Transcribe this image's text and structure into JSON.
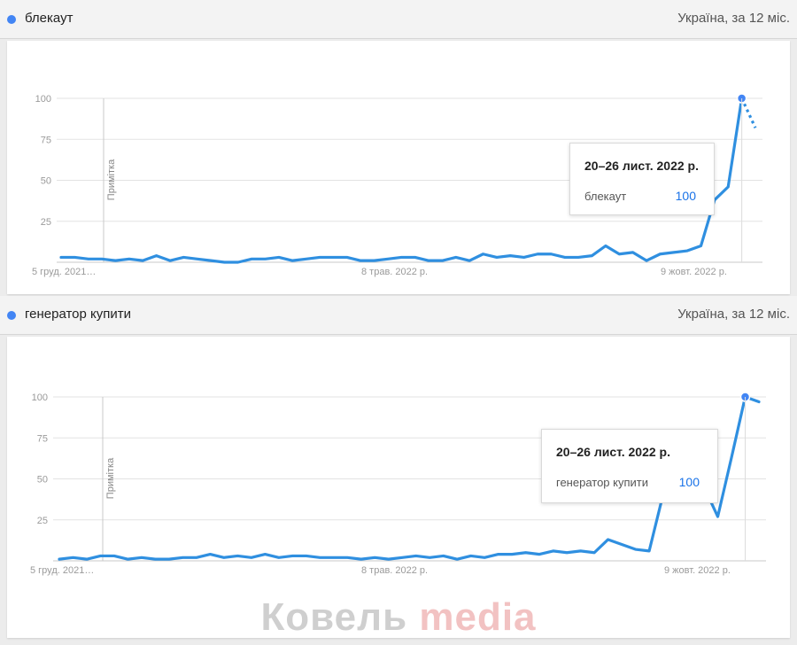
{
  "panels": [
    {
      "term": "блекаут",
      "region": "Україна, за 12 міс.",
      "tooltip": {
        "date": "20–26 лист. 2022 р.",
        "term": "блекаут",
        "value": "100"
      },
      "note": "Примітка",
      "chart_data": {
        "type": "line",
        "ylim": [
          0,
          100
        ],
        "yticks": [
          "100",
          "75",
          "50",
          "25"
        ],
        "xticks": [
          "5 груд. 2021…",
          "8 трав. 2022 р.",
          "9 жовт. 2022 р."
        ],
        "series": [
          {
            "name": "блекаут",
            "values": [
              3,
              3,
              2,
              2,
              1,
              2,
              1,
              4,
              1,
              3,
              2,
              1,
              0,
              0,
              2,
              2,
              3,
              1,
              2,
              3,
              3,
              3,
              1,
              1,
              2,
              3,
              3,
              1,
              1,
              3,
              1,
              5,
              3,
              4,
              3,
              5,
              5,
              3,
              3,
              4,
              10,
              5,
              6,
              1,
              5,
              6,
              7,
              10,
              38,
              46,
              100,
              82
            ],
            "partial_last": true
          }
        ]
      },
      "colors": {
        "line": "#2f8fe0",
        "dot": "#4285f4"
      }
    },
    {
      "term": "генератор купити",
      "region": "Україна, за 12 міс.",
      "tooltip": {
        "date": "20–26 лист. 2022 р.",
        "term": "генератор купити",
        "value": "100"
      },
      "note": "Примітка",
      "chart_data": {
        "type": "line",
        "ylim": [
          0,
          100
        ],
        "yticks": [
          "100",
          "75",
          "50",
          "25"
        ],
        "xticks": [
          "5 груд. 2021…",
          "8 трав. 2022 р.",
          "9 жовт. 2022 р."
        ],
        "series": [
          {
            "name": "генератор купити",
            "values": [
              1,
              2,
              1,
              3,
              3,
              1,
              2,
              1,
              1,
              2,
              2,
              4,
              2,
              3,
              2,
              4,
              2,
              3,
              3,
              2,
              2,
              2,
              1,
              2,
              1,
              2,
              3,
              2,
              3,
              1,
              3,
              2,
              4,
              4,
              5,
              4,
              6,
              5,
              6,
              5,
              13,
              10,
              7,
              6,
              40,
              52,
              61,
              45,
              27,
              63,
              100,
              97
            ],
            "partial_last": false
          }
        ]
      },
      "colors": {
        "line": "#2f8fe0",
        "dot": "#4285f4"
      }
    }
  ],
  "watermark": {
    "word1": "Ковель",
    "word2": "media"
  }
}
